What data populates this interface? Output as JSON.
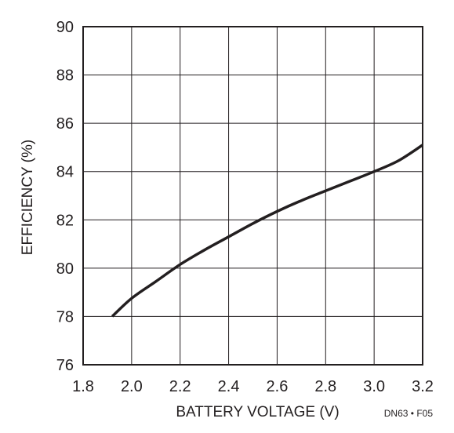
{
  "chart_data": {
    "type": "line",
    "xlabel": "BATTERY VOLTAGE (V)",
    "ylabel": "EFFICIENCY (%)",
    "xlim": [
      1.8,
      3.2
    ],
    "ylim": [
      76,
      90
    ],
    "xticks": [
      1.8,
      2.0,
      2.2,
      2.4,
      2.6,
      2.8,
      3.0,
      3.2
    ],
    "xtick_labels": [
      "1.8",
      "2.0",
      "2.2",
      "2.4",
      "2.6",
      "2.8",
      "3.0",
      "3.2"
    ],
    "yticks": [
      76,
      78,
      80,
      82,
      84,
      86,
      88,
      90
    ],
    "ytick_labels": [
      "76",
      "78",
      "80",
      "82",
      "84",
      "86",
      "88",
      "90"
    ],
    "grid": true,
    "figure_id": "DN63 • F05",
    "series": [
      {
        "color": "#231f20",
        "x": [
          1.92,
          2.0,
          2.1,
          2.2,
          2.3,
          2.4,
          2.5,
          2.6,
          2.7,
          2.8,
          2.9,
          3.0,
          3.1,
          3.2
        ],
        "y": [
          78.0,
          78.75,
          79.45,
          80.15,
          80.75,
          81.3,
          81.85,
          82.35,
          82.8,
          83.2,
          83.6,
          84.0,
          84.45,
          85.1
        ]
      }
    ]
  }
}
